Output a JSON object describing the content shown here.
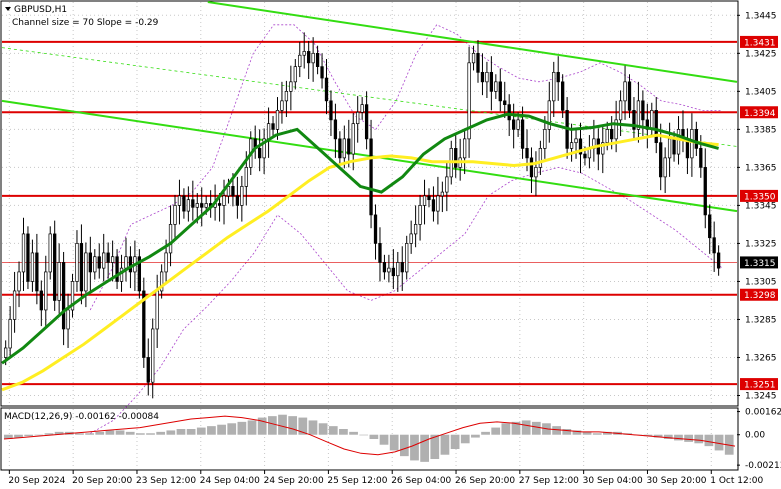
{
  "header": {
    "symbol": "GBPUSD,H1",
    "indicator": "Channel size = 70 Slope = -0.29",
    "macd_label": "MACD(12,26,9) -0.00162 -0.00084"
  },
  "colors": {
    "channel": "#33dd11",
    "level": "#dd0000",
    "ma_fast": "#ffee22",
    "ma_slow": "#118811",
    "bollinger": "#aa44cc",
    "macd_hist": "#b0b0b0",
    "macd_signal": "#dd0000",
    "candle": "#000000",
    "current_price_box": "#000000"
  },
  "chart_data": [
    {
      "type": "candlestick",
      "symbol": "GBPUSD",
      "timeframe": "H1",
      "y_ticks": [
        "1.3445",
        "1.3425",
        "1.3405",
        "1.3385",
        "1.3365",
        "1.3345",
        "1.3325",
        "1.3305",
        "1.3285",
        "1.3265",
        "1.3245"
      ],
      "ylim": [
        1.324,
        1.3452
      ],
      "x_ticks": [
        "20 Sep 2024",
        "20 Sep 20:00",
        "23 Sep 12:00",
        "24 Sep 04:00",
        "24 Sep 20:00",
        "25 Sep 12:00",
        "26 Sep 04:00",
        "26 Sep 20:00",
        "27 Sep 12:00",
        "30 Sep 04:00",
        "30 Sep 20:00",
        "1 Oct 12:00"
      ],
      "levels": [
        {
          "label": "1.3431",
          "value": 1.3431
        },
        {
          "label": "1.3394",
          "value": 1.3394
        },
        {
          "label": "1.3350",
          "value": 1.335
        },
        {
          "label": "1.3298",
          "value": 1.3298
        },
        {
          "label": "1.3251",
          "value": 1.3251
        }
      ],
      "current_price": {
        "label": "1.3315",
        "value": 1.3315
      },
      "closes": [
        1.327,
        1.3285,
        1.33,
        1.331,
        1.333,
        1.3305,
        1.332,
        1.33,
        1.329,
        1.331,
        1.333,
        1.3295,
        1.3315,
        1.328,
        1.329,
        1.3305,
        1.3325,
        1.33,
        1.332,
        1.331,
        1.3318,
        1.3312,
        1.332,
        1.3315,
        1.3318,
        1.3305,
        1.3312,
        1.3318,
        1.331,
        1.3318,
        1.33,
        1.3265,
        1.3252,
        1.328,
        1.33,
        1.331,
        1.332,
        1.3335,
        1.3345,
        1.335,
        1.3342,
        1.3348,
        1.3344,
        1.3346,
        1.3344,
        1.3346,
        1.3344,
        1.3346,
        1.3345,
        1.335,
        1.3355,
        1.335,
        1.3345,
        1.3355,
        1.3365,
        1.338,
        1.3375,
        1.337,
        1.338,
        1.3388,
        1.3385,
        1.3395,
        1.34,
        1.3405,
        1.341,
        1.3418,
        1.3424,
        1.3426,
        1.342,
        1.3425,
        1.3418,
        1.3412,
        1.34,
        1.339,
        1.338,
        1.337,
        1.338,
        1.3372,
        1.3388,
        1.3394,
        1.3398,
        1.338,
        1.334,
        1.3325,
        1.3315,
        1.331,
        1.3312,
        1.3308,
        1.3315,
        1.331,
        1.3325,
        1.333,
        1.3335,
        1.3345,
        1.335,
        1.3348,
        1.3342,
        1.335,
        1.3352,
        1.336,
        1.3375,
        1.3365,
        1.337,
        1.338,
        1.342,
        1.3425,
        1.3415,
        1.341,
        1.3415,
        1.3405,
        1.341,
        1.34,
        1.3398,
        1.339,
        1.3385,
        1.339,
        1.3375,
        1.337,
        1.336,
        1.3365,
        1.3375,
        1.3385,
        1.34,
        1.3415,
        1.341,
        1.3395,
        1.3375,
        1.3378,
        1.338,
        1.3372,
        1.337,
        1.3375,
        1.338,
        1.3372,
        1.3378,
        1.3385,
        1.338,
        1.339,
        1.34,
        1.341,
        1.3395,
        1.3385,
        1.34,
        1.339,
        1.3385,
        1.3395,
        1.3378,
        1.336,
        1.337,
        1.338,
        1.3372,
        1.3385,
        1.338,
        1.337,
        1.3385,
        1.3375,
        1.3365,
        1.334,
        1.3328,
        1.332,
        1.3312
      ],
      "ma_fast_values": [
        1.3248,
        1.3252,
        1.3258,
        1.3265,
        1.3272,
        1.328,
        1.3288,
        1.3296,
        1.3304,
        1.3312,
        1.332,
        1.3328,
        1.3335,
        1.3342,
        1.335,
        1.3358,
        1.3365,
        1.3368,
        1.337,
        1.3371,
        1.337,
        1.3368,
        1.3368,
        1.3368,
        1.3367,
        1.3366,
        1.3367,
        1.337,
        1.3373,
        1.3376,
        1.3378,
        1.338,
        1.3382,
        1.338,
        1.3378,
        1.3377
      ],
      "ma_slow_values": [
        1.3262,
        1.327,
        1.328,
        1.329,
        1.3298,
        1.3305,
        1.3312,
        1.3318,
        1.3325,
        1.3335,
        1.3345,
        1.336,
        1.3375,
        1.3382,
        1.3385,
        1.3375,
        1.3365,
        1.3355,
        1.3352,
        1.336,
        1.3372,
        1.338,
        1.3385,
        1.339,
        1.3393,
        1.3392,
        1.3388,
        1.3385,
        1.3386,
        1.3388,
        1.3387,
        1.3385,
        1.3382,
        1.3378,
        1.3375
      ],
      "bb_upper_values": [
        1.329,
        1.331,
        1.3335,
        1.334,
        1.3345,
        1.3352,
        1.3365,
        1.3395,
        1.3425,
        1.344,
        1.344,
        1.343,
        1.341,
        1.3392,
        1.3385,
        1.34,
        1.3425,
        1.344,
        1.3435,
        1.3425,
        1.3418,
        1.3412,
        1.341,
        1.3412,
        1.3415,
        1.342,
        1.3415,
        1.3408,
        1.34,
        1.3398,
        1.3395,
        1.3395
      ],
      "bb_lower_values": [
        1.3225,
        1.3232,
        1.3245,
        1.326,
        1.328,
        1.3292,
        1.3305,
        1.332,
        1.334,
        1.333,
        1.3315,
        1.33,
        1.3295,
        1.33,
        1.331,
        1.332,
        1.333,
        1.335,
        1.3358,
        1.3362,
        1.3365,
        1.3362,
        1.3355,
        1.3348,
        1.334,
        1.3332,
        1.3322,
        1.3312
      ],
      "channel_upper": [
        {
          "x_frac": 0.28,
          "value": 1.3452
        },
        {
          "x_frac": 1.0,
          "value": 1.341
        }
      ],
      "channel_lower": [
        {
          "x_frac": 0.0,
          "value": 1.34
        },
        {
          "x_frac": 1.0,
          "value": 1.3342
        }
      ]
    },
    {
      "type": "histogram",
      "name": "MACD(12,26,9)",
      "y_ticks": [
        "0.00162",
        "0.00",
        "-0.00213"
      ],
      "ylim": [
        -0.0024,
        0.0018
      ],
      "histogram": [
        -0.0003,
        -0.0002,
        -0.0001,
        0.0,
        0.0001,
        0.0002,
        0.0002,
        0.0001,
        0.0001,
        0.0002,
        0.0003,
        0.0003,
        0.0002,
        0.0001,
        0.0001,
        0.0002,
        0.0003,
        0.0004,
        0.0004,
        0.0005,
        0.0006,
        0.0007,
        0.0008,
        0.0009,
        0.001,
        0.0012,
        0.0013,
        0.0014,
        0.0013,
        0.0012,
        0.001,
        0.0008,
        0.0006,
        0.0004,
        0.0002,
        0.0,
        -0.0003,
        -0.0007,
        -0.0011,
        -0.0015,
        -0.0018,
        -0.0019,
        -0.0017,
        -0.0014,
        -0.001,
        -0.0006,
        -0.0002,
        0.0002,
        0.0005,
        0.0008,
        0.0009,
        0.001,
        0.0009,
        0.0008,
        0.0006,
        0.0004,
        0.0003,
        0.0002,
        0.0001,
        0.0002,
        0.0002,
        0.0001,
        0.0,
        -0.0001,
        -0.0002,
        -0.0003,
        -0.0004,
        -0.0005,
        -0.0006,
        -0.0008,
        -0.0011,
        -0.0014
      ],
      "signal": [
        -0.0003,
        -0.0002,
        -0.0001,
        0.0,
        0.0001,
        0.0002,
        0.0003,
        0.0004,
        0.0005,
        0.0007,
        0.0009,
        0.0011,
        0.0012,
        0.0013,
        0.0012,
        0.001,
        0.0007,
        0.0004,
        0.0,
        -0.0005,
        -0.001,
        -0.0013,
        -0.0014,
        -0.0012,
        -0.0008,
        -0.0003,
        0.0001,
        0.0005,
        0.0008,
        0.0009,
        0.0008,
        0.0006,
        0.0004,
        0.0003,
        0.0002,
        0.0002,
        0.0001,
        0.0,
        -0.0001,
        -0.0002,
        -0.0003,
        -0.0004,
        -0.0006,
        -0.0008
      ]
    }
  ]
}
